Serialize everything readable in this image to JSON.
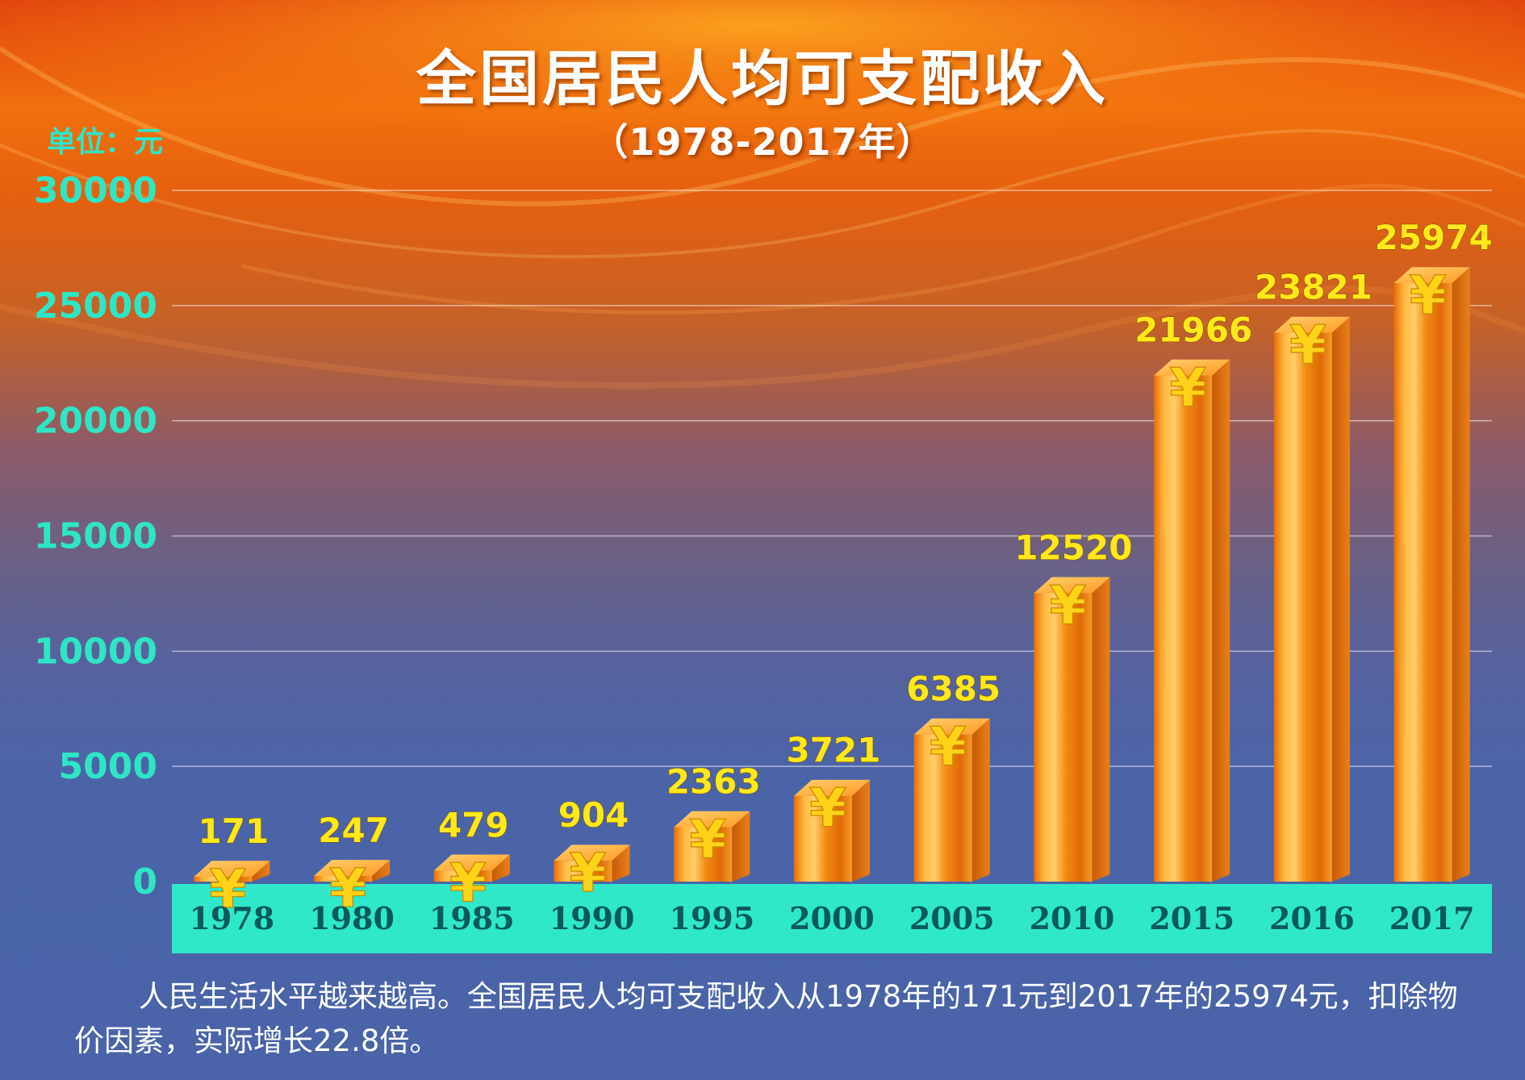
{
  "header": {
    "title": "全国居民人均可支配收入",
    "subtitle": "（1978-2017年）"
  },
  "unit_label": "单位：元",
  "caption": "人民生活水平越来越高。全国居民人均可支配收入从1978年的171元到2017年的25974元，扣除物价因素，实际增长22.8倍。",
  "colors": {
    "axis_tick_text": "#2ee6c6",
    "axis_band": "#2ee8c9",
    "category_text": "#0a5a5a",
    "value_label": "#ffe81a",
    "bar_face": "#f0820a",
    "bar_highlight": "#ffc850",
    "bar_side": "#c75608",
    "yen_symbol": "#ffd21a"
  },
  "chart_data": {
    "type": "bar",
    "categories": [
      "1978",
      "1980",
      "1985",
      "1990",
      "1995",
      "2000",
      "2005",
      "2010",
      "2015",
      "2016",
      "2017"
    ],
    "values": [
      171,
      247,
      479,
      904,
      2363,
      3721,
      6385,
      12520,
      21966,
      23821,
      25974
    ],
    "y_ticks": [
      0,
      5000,
      10000,
      15000,
      20000,
      25000,
      30000
    ],
    "ylim": [
      0,
      30000
    ],
    "grid": true,
    "bar_style": "3d-cylinder",
    "bar_icon": "yen-symbol"
  }
}
